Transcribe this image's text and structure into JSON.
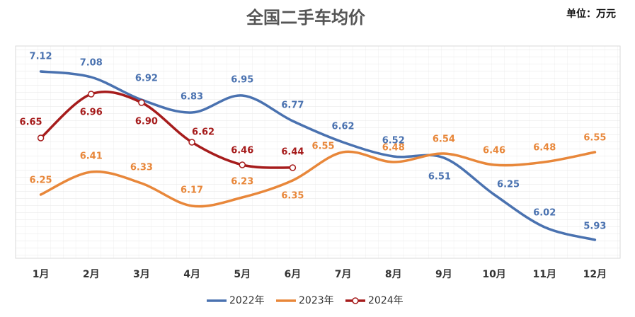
{
  "chart_data": {
    "type": "line",
    "title": "全国二手车均价",
    "unit_note": "单位：万元",
    "categories": [
      "1月",
      "2月",
      "3月",
      "4月",
      "5月",
      "6月",
      "7月",
      "8月",
      "9月",
      "10月",
      "11月",
      "12月"
    ],
    "ylim": [
      5.8,
      7.3
    ],
    "grid": true,
    "series": [
      {
        "name": "2022年",
        "color": "#4a72b0",
        "values": [
          7.12,
          7.08,
          6.92,
          6.83,
          6.95,
          6.77,
          6.62,
          6.52,
          6.51,
          6.25,
          6.02,
          5.93
        ],
        "value_labels": [
          "7.12",
          "7.08",
          "6.92",
          "6.83",
          "6.95",
          "6.77",
          "6.62",
          "6.52",
          "6.51",
          "6.25",
          "6.02",
          "5.93"
        ]
      },
      {
        "name": "2023年",
        "color": "#e8873a",
        "values": [
          6.25,
          6.41,
          6.33,
          6.17,
          6.23,
          6.35,
          6.55,
          6.48,
          6.54,
          6.46,
          6.48,
          6.55
        ],
        "value_labels": [
          "6.25",
          "6.41",
          "6.33",
          "6.17",
          "6.23",
          "6.35",
          "6.55",
          "6.48",
          "6.54",
          "6.46",
          "6.48",
          "6.55"
        ]
      },
      {
        "name": "2024年",
        "color": "#a61c1c",
        "values": [
          6.65,
          6.96,
          6.9,
          6.62,
          6.46,
          6.44,
          null,
          null,
          null,
          null,
          null,
          null
        ],
        "value_labels": [
          "6.65",
          "6.96",
          "6.90",
          "6.62",
          "6.46",
          "6.44",
          null,
          null,
          null,
          null,
          null,
          null
        ]
      }
    ]
  }
}
